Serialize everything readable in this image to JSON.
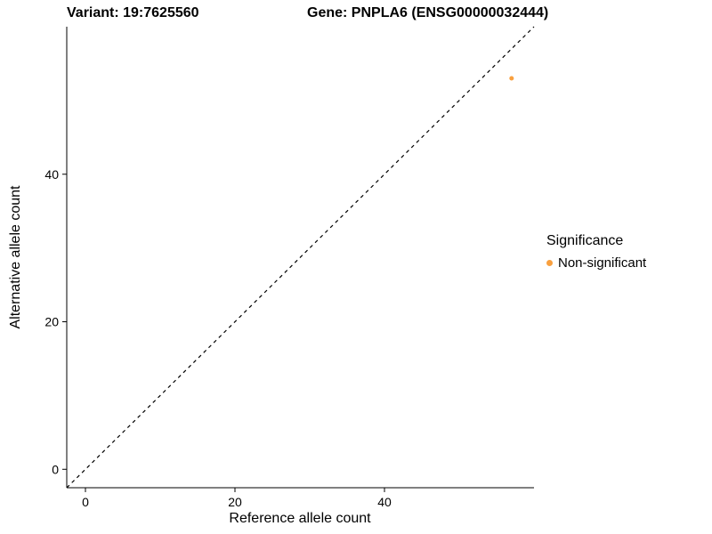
{
  "page": {
    "background": "#FFFFFF"
  },
  "titles": {
    "variant": "Variant: 19:7625560",
    "gene": "Gene: PNPLA6 (ENSG00000032444)"
  },
  "chart_data": {
    "type": "scatter",
    "title_left": "Variant: 19:7625560",
    "title_right": "Gene: PNPLA6 (ENSG00000032444)",
    "xlabel": "Reference allele count",
    "ylabel": "Alternative allele count",
    "xlim": [
      -2.5,
      60
    ],
    "ylim": [
      -2.5,
      60
    ],
    "xticks": [
      0,
      20,
      40
    ],
    "yticks": [
      0,
      20,
      40
    ],
    "grid": false,
    "axis_color": "#000000",
    "text_color": "#000000",
    "identity_line": {
      "style": "dashed",
      "color": "#000000",
      "x1": -2.5,
      "y1": -2.5,
      "x2": 60,
      "y2": 60
    },
    "series": [
      {
        "name": "Non-significant",
        "color": "#F9A03F",
        "point_radius": 2.5,
        "points": [
          {
            "x": 57,
            "y": 53
          }
        ]
      }
    ],
    "legend": {
      "title": "Significance",
      "position": "right",
      "entries": [
        {
          "label": "Non-significant",
          "color": "#F9A03F"
        }
      ]
    }
  }
}
